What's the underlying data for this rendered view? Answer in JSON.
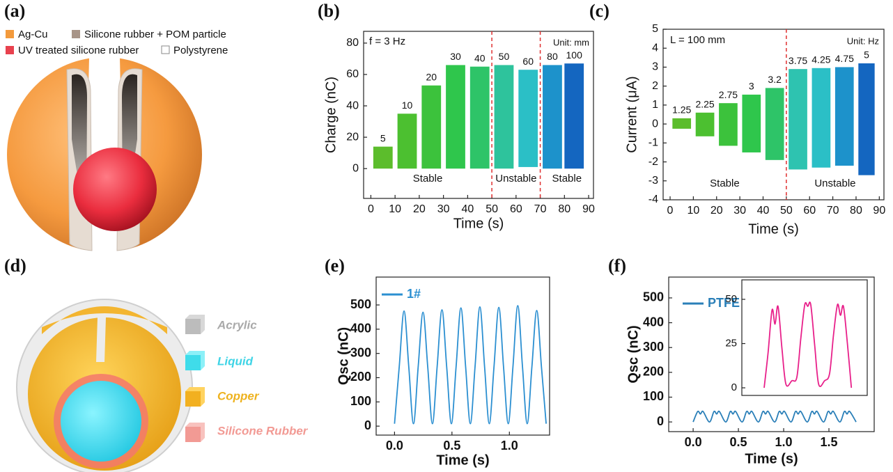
{
  "figure_a": {
    "label": "(a)",
    "legend": [
      "Ag-Cu",
      "Silicone rubber + POM particle",
      "UV treated silicone rubber",
      "Polystyrene"
    ]
  },
  "figure_d": {
    "label": "(d)",
    "legend": [
      "Acrylic",
      "Liquid",
      "Copper",
      "Silicone Rubber"
    ]
  },
  "chart_data": [
    {
      "type": "segments",
      "panel": "(b)",
      "xlabel": "Time (s)",
      "ylabel": "Charge (nC)",
      "annotations": [
        "f = 3 Hz",
        "Unit: mm"
      ],
      "regions": [
        "Stable",
        "Unstable",
        "Stable"
      ],
      "vlines": [
        50,
        70
      ],
      "categories": [
        "5",
        "10",
        "20",
        "30",
        "40",
        "50",
        "60",
        "80",
        "100"
      ],
      "x_start": [
        1,
        11,
        21,
        31,
        41,
        51,
        61,
        71,
        80
      ],
      "x_end": [
        9,
        19,
        29,
        39,
        49,
        59,
        69,
        79,
        88
      ],
      "values": [
        14,
        35,
        53,
        66,
        65,
        66,
        63,
        66,
        67
      ],
      "lower": [
        0,
        0,
        0,
        0,
        0,
        0,
        1,
        0,
        0
      ],
      "colors": [
        "#5cbd2c",
        "#4cc030",
        "#3cc23c",
        "#2fc64c",
        "#2ec468",
        "#2ec39c",
        "#2bbfc6",
        "#1d92cb",
        "#1466c0"
      ],
      "xlim": [
        -3,
        92
      ],
      "ylim": [
        -19,
        87.5
      ],
      "xticks": [
        0,
        10,
        20,
        30,
        40,
        50,
        60,
        70,
        80,
        90
      ],
      "yticks": [
        0,
        20,
        40,
        60,
        80
      ]
    },
    {
      "type": "segments",
      "panel": "(c)",
      "xlabel": "Time (s)",
      "ylabel": "Current (μA)",
      "annotations": [
        "L = 100 mm",
        "Unit: Hz"
      ],
      "regions": [
        "Stable",
        "Unstable"
      ],
      "vlines": [
        50
      ],
      "categories": [
        "1.25",
        "2.25",
        "2.75",
        "3",
        "3.2",
        "3.75",
        "4.25",
        "4.75",
        "5"
      ],
      "x_start": [
        1,
        11,
        21,
        31,
        41,
        51,
        61,
        71,
        81
      ],
      "x_end": [
        9,
        19,
        29,
        39,
        49,
        59,
        69,
        79,
        88
      ],
      "values": [
        0.3,
        0.6,
        1.1,
        1.55,
        1.9,
        2.9,
        2.95,
        3.0,
        3.2
      ],
      "lower": [
        -0.25,
        -0.65,
        -1.15,
        -1.5,
        -1.9,
        -2.4,
        -2.3,
        -2.2,
        -2.7
      ],
      "colors": [
        "#5cbd2c",
        "#4cc030",
        "#3cc23c",
        "#2fc64c",
        "#2ec468",
        "#2ec3b0",
        "#2bbfc6",
        "#1d92cb",
        "#1466c0"
      ],
      "xlim": [
        -3,
        92
      ],
      "ylim": [
        -4,
        5
      ],
      "xticks": [
        0,
        10,
        20,
        30,
        40,
        50,
        60,
        70,
        80,
        90
      ],
      "yticks": [
        -4,
        -3,
        -2,
        -1,
        0,
        1,
        2,
        3,
        4,
        5
      ]
    },
    {
      "type": "line",
      "panel": "(e)",
      "xlabel": "Time (s)",
      "ylabel": "Qsc (nC)",
      "x": [
        0,
        0.041,
        0.083,
        0.124,
        0.165,
        0.206,
        0.248,
        0.289,
        0.33,
        0.371,
        0.413,
        0.454,
        0.495,
        0.536,
        0.578,
        0.619,
        0.66,
        0.701,
        0.743,
        0.784,
        0.825,
        0.866,
        0.908,
        0.949,
        0.99,
        1.031,
        1.073,
        1.114,
        1.155,
        1.196,
        1.238,
        1.279,
        1.32
      ],
      "series": [
        {
          "name": "1#",
          "color": "#2b8fd1",
          "values": [
            10,
            245,
            475,
            245,
            10,
            245,
            470,
            245,
            10,
            245,
            480,
            245,
            10,
            245,
            488,
            245,
            10,
            245,
            492,
            245,
            10,
            245,
            490,
            245,
            10,
            245,
            497,
            245,
            10,
            245,
            477,
            245,
            10
          ]
        }
      ],
      "xlim": [
        -0.16,
        1.35
      ],
      "ylim": [
        -37,
        615
      ],
      "xticks": [
        {
          "value": 0,
          "label": "0.0"
        },
        {
          "value": 0.5,
          "label": "0.5"
        },
        {
          "value": 1,
          "label": "1.0"
        }
      ],
      "yticks": [
        0,
        100,
        200,
        300,
        400,
        500
      ]
    },
    {
      "type": "line",
      "panel": "(f)",
      "xlabel": "Time (s)",
      "ylabel": "Qsc (nC)",
      "x": [
        0,
        0.05,
        0.08,
        0.11,
        0.18,
        0.23,
        0.26,
        0.29,
        0.36,
        0.41,
        0.44,
        0.47,
        0.54,
        0.59,
        0.62,
        0.65,
        0.72,
        0.77,
        0.8,
        0.83,
        0.9,
        0.95,
        0.98,
        1.01,
        1.08,
        1.13,
        1.16,
        1.19,
        1.26,
        1.31,
        1.34,
        1.37,
        1.44,
        1.49,
        1.52,
        1.55,
        1.62,
        1.67,
        1.7,
        1.73,
        1.8
      ],
      "series": [
        {
          "name": "PTFE",
          "color": "#2a7fb8",
          "values": [
            0,
            42,
            32,
            42,
            0,
            42,
            32,
            42,
            0,
            42,
            32,
            42,
            0,
            42,
            32,
            42,
            0,
            42,
            32,
            42,
            0,
            42,
            32,
            42,
            0,
            42,
            32,
            42,
            0,
            42,
            32,
            42,
            0,
            42,
            32,
            42,
            0,
            42,
            32,
            42,
            0
          ]
        }
      ],
      "xlim": [
        -0.27,
        2.0
      ],
      "ylim": [
        -39,
        584
      ],
      "xticks": [
        {
          "value": 0,
          "label": "0.0"
        },
        {
          "value": 0.5,
          "label": "0.5"
        },
        {
          "value": 1,
          "label": "1.0"
        },
        {
          "value": 1.5,
          "label": "1.5"
        }
      ],
      "yticks": [
        0,
        100,
        200,
        300,
        400,
        500
      ]
    },
    {
      "type": "line",
      "x": [
        0,
        0.04,
        0.08,
        0.11,
        0.14,
        0.18,
        0.22,
        0.28,
        0.33,
        0.37,
        0.41,
        0.44,
        0.47,
        0.51,
        0.55,
        0.61,
        0.66,
        0.7,
        0.74,
        0.77,
        0.8,
        0.84,
        0.88
      ],
      "series": [
        {
          "color": "#e8208a",
          "values": [
            0,
            20,
            44,
            36,
            46,
            22,
            2,
            4,
            6,
            28,
            47,
            46,
            47,
            24,
            2,
            4,
            8,
            30,
            47,
            41,
            46,
            25,
            0
          ]
        }
      ],
      "xlim": [
        -0.225,
        1.04
      ],
      "ylim": [
        -4.3,
        61
      ],
      "yticks": [
        0,
        25,
        50
      ]
    }
  ]
}
